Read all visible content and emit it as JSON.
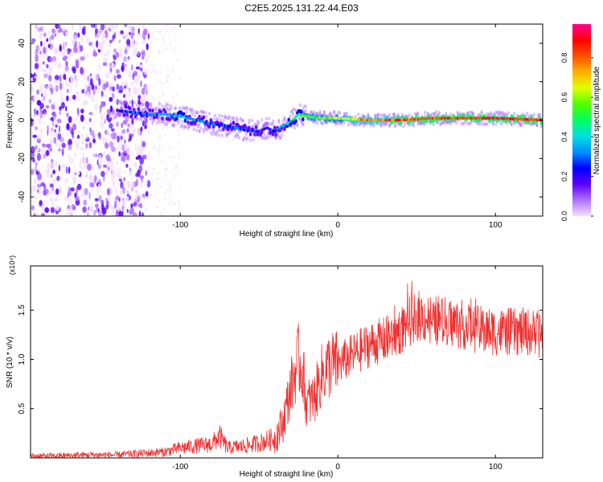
{
  "title": "C2E5.2025.131.22.44.E03",
  "colors": {
    "snr_line": "#ee3030",
    "axes": "#000000",
    "background": "#ffffff"
  },
  "chart_data": [
    {
      "type": "heatmap",
      "id": "spectrogram",
      "xlabel": "Height of straight line (km)",
      "ylabel": "Frequency (Hz)",
      "xlim": [
        -195,
        130
      ],
      "ylim": [
        -50,
        50
      ],
      "xticks": [
        -100,
        0,
        100
      ],
      "yticks": [
        -40,
        -20,
        0,
        20,
        40
      ],
      "grid": false,
      "colorbar": {
        "label": "Normalized spectral amplitude",
        "range": [
          0.0,
          0.97
        ],
        "ticks": [
          0.0,
          0.2,
          0.4,
          0.6,
          0.8
        ],
        "colormap": [
          "#f4e0ff",
          "#b070ff",
          "#5a00ff",
          "#0000ff",
          "#0090ff",
          "#00e0e0",
          "#00ff60",
          "#50ff00",
          "#e0ff00",
          "#ffb000",
          "#ff5000",
          "#ff0000",
          "#ff0090"
        ]
      },
      "ridge": {
        "x": [
          -140,
          -130,
          -120,
          -110,
          -100,
          -90,
          -80,
          -70,
          -60,
          -50,
          -45,
          -40,
          -35,
          -30,
          -25,
          -20,
          -10,
          0,
          20,
          40,
          60,
          80,
          100,
          130
        ],
        "y": [
          5,
          4,
          3,
          3,
          2,
          0,
          -2,
          -3,
          -5,
          -6,
          -4,
          -6,
          -3,
          -1,
          3,
          2,
          1,
          1,
          0,
          0,
          1,
          1,
          1,
          0
        ],
        "amplitude": [
          0.2,
          0.3,
          0.3,
          0.35,
          0.4,
          0.35,
          0.3,
          0.3,
          0.25,
          0.25,
          0.2,
          0.3,
          0.35,
          0.4,
          0.5,
          0.55,
          0.6,
          0.65,
          0.8,
          0.85,
          0.85,
          0.85,
          0.9,
          0.85
        ]
      },
      "noise_region_x": [
        -195,
        -120
      ]
    },
    {
      "type": "line",
      "id": "snr",
      "xlabel": "Height of straight line (km)",
      "ylabel": "SNR (10 * v/v)",
      "yscale_label": "(x10⁴)",
      "xlim": [
        -195,
        130
      ],
      "ylim": [
        0,
        1.95
      ],
      "xticks": [
        -100,
        0,
        100
      ],
      "yticks": [
        0.5,
        1.0,
        1.5
      ],
      "grid": false,
      "series": [
        {
          "x": [
            -195,
            -180,
            -160,
            -140,
            -120,
            -110,
            -100,
            -90,
            -80,
            -75,
            -70,
            -60,
            -50,
            -40,
            -35,
            -30,
            -25,
            -22,
            -20,
            -15,
            -10,
            -5,
            0,
            10,
            20,
            30,
            40,
            50,
            60,
            70,
            80,
            90,
            100,
            110,
            120,
            130
          ],
          "y": [
            0.02,
            0.02,
            0.03,
            0.03,
            0.05,
            0.06,
            0.1,
            0.12,
            0.14,
            0.22,
            0.1,
            0.12,
            0.15,
            0.2,
            0.35,
            0.7,
            1.0,
            0.85,
            0.55,
            0.6,
            0.85,
            0.95,
            0.95,
            1.05,
            1.15,
            1.2,
            1.3,
            1.45,
            1.4,
            1.38,
            1.35,
            1.3,
            1.28,
            1.28,
            1.28,
            1.25
          ]
        }
      ]
    }
  ]
}
